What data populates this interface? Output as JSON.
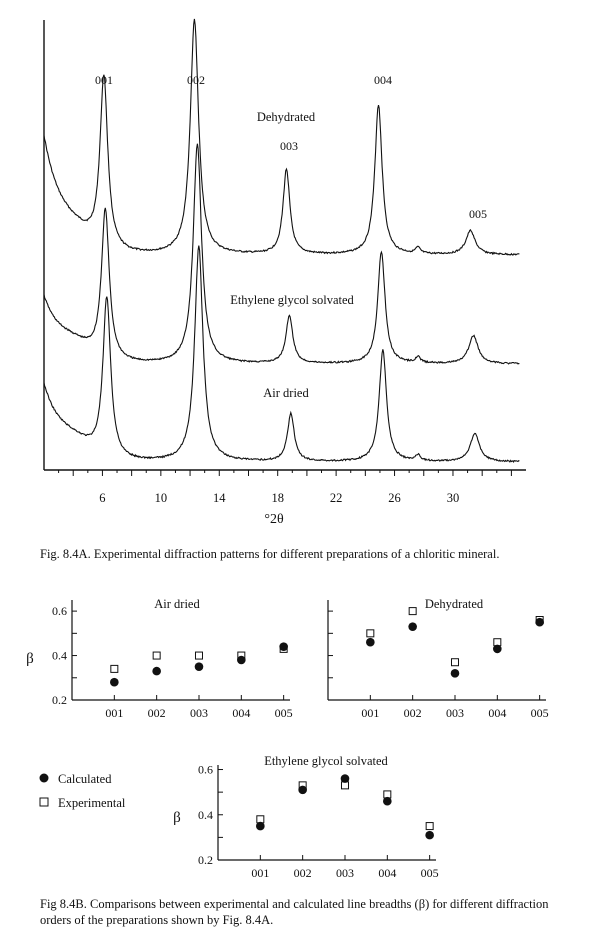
{
  "figure_a": {
    "peak_labels": [
      "001",
      "002",
      "003",
      "004",
      "005"
    ],
    "pattern_labels": [
      "Dehydrated",
      "Ethylene glycol solvated",
      "Air dried"
    ],
    "xlabel": "°2θ",
    "caption": "Fig. 8.4A.  Experimental diffraction patterns for different preparations of a chloritic mineral."
  },
  "figure_b": {
    "legend": {
      "calculated": "Calculated",
      "experimental": "Experimental"
    },
    "caption": "Fig 8.4B.  Comparisons between experimental and calculated line breadths (β) for different diffraction orders of the preparations shown by Fig. 8.4A."
  },
  "chart_data": [
    {
      "type": "line",
      "title": "",
      "xlabel": "°2θ",
      "ylabel": "",
      "x_ticks": [
        6,
        10,
        14,
        18,
        22,
        26,
        30
      ],
      "xlim": [
        2,
        35
      ],
      "series": [
        {
          "name": "Dehydrated",
          "peaks_2theta": [
            6.1,
            12.3,
            18.6,
            24.9,
            31.2
          ]
        },
        {
          "name": "Ethylene glycol solvated",
          "peaks_2theta": [
            6.2,
            12.5,
            18.8,
            25.1,
            31.4
          ]
        },
        {
          "name": "Air dried",
          "peaks_2theta": [
            6.3,
            12.6,
            18.9,
            25.2,
            31.5
          ]
        }
      ],
      "peak_labels": [
        "001",
        "002",
        "003",
        "004",
        "005"
      ],
      "grid": false
    },
    {
      "type": "scatter",
      "title": "Air dried",
      "ylabel": "β",
      "categories": [
        "001",
        "002",
        "003",
        "004",
        "005"
      ],
      "y_ticks": [
        0.2,
        0.4,
        0.6
      ],
      "ylim": [
        0.2,
        0.65
      ],
      "series": [
        {
          "name": "Calculated",
          "values": [
            0.28,
            0.33,
            0.35,
            0.38,
            0.44
          ]
        },
        {
          "name": "Experimental",
          "values": [
            0.34,
            0.4,
            0.4,
            0.4,
            0.43
          ]
        }
      ]
    },
    {
      "type": "scatter",
      "title": "Dehydrated",
      "ylabel": "",
      "categories": [
        "001",
        "002",
        "003",
        "004",
        "005"
      ],
      "y_ticks": [
        0.2,
        0.4,
        0.6
      ],
      "ylim": [
        0.2,
        0.65
      ],
      "series": [
        {
          "name": "Calculated",
          "values": [
            0.46,
            0.53,
            0.32,
            0.43,
            0.55
          ]
        },
        {
          "name": "Experimental",
          "values": [
            0.5,
            0.6,
            0.37,
            0.46,
            0.56
          ]
        }
      ]
    },
    {
      "type": "scatter",
      "title": "Ethylene glycol solvated",
      "ylabel": "β",
      "categories": [
        "001",
        "002",
        "003",
        "004",
        "005"
      ],
      "y_ticks": [
        0.2,
        0.4,
        0.6
      ],
      "ylim": [
        0.2,
        0.62
      ],
      "series": [
        {
          "name": "Calculated",
          "values": [
            0.35,
            0.51,
            0.56,
            0.46,
            0.31
          ]
        },
        {
          "name": "Experimental",
          "values": [
            0.38,
            0.53,
            0.53,
            0.49,
            0.35
          ]
        }
      ]
    }
  ]
}
